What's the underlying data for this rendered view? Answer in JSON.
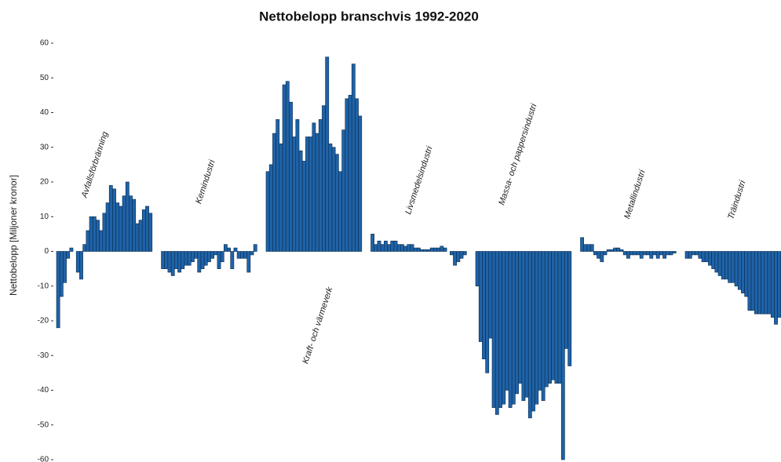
{
  "chart_data": {
    "type": "bar",
    "title": "Nettobelopp branschvis 1992-2020",
    "y_label": "Nettobelopp [Miljoner kronor]",
    "ylim": [
      -60,
      60
    ],
    "yticks": [
      -60,
      -50,
      -40,
      -30,
      -20,
      -10,
      0,
      10,
      20,
      30,
      40,
      50,
      60
    ],
    "series": [
      {
        "name": "Avfallsförbränning",
        "color": "#1f63a8",
        "values": [
          -22,
          -13,
          -9,
          -2,
          1,
          0,
          -6,
          -8,
          2,
          6,
          10,
          10,
          9,
          6,
          11,
          14,
          19,
          18,
          14,
          13,
          16,
          20,
          16,
          15,
          8,
          9,
          12,
          13,
          11
        ]
      },
      {
        "name": "Kemindustri",
        "color": "#1f63a8",
        "values": [
          -5,
          -5,
          -6,
          -7,
          -5,
          -6,
          -5,
          -4,
          -4,
          -3,
          -2,
          -6,
          -5,
          -4,
          -3,
          -2,
          -1,
          -5,
          -3,
          2,
          1,
          -5,
          1,
          -2,
          -2,
          -2,
          -6,
          -1,
          2
        ]
      },
      {
        "name": "Kraft- och värmeverk",
        "color": "#1f63a8",
        "values": [
          23,
          25,
          34,
          38,
          31,
          48,
          49,
          43,
          33,
          38,
          29,
          26,
          33,
          33,
          37,
          34,
          38,
          42,
          56,
          31,
          30,
          28,
          23,
          35,
          44,
          45,
          54,
          44,
          39
        ]
      },
      {
        "name": "Livsmedelsindustri",
        "color": "#1f63a8",
        "values": [
          5,
          2,
          3,
          2,
          3,
          2,
          3,
          3,
          2,
          2,
          1.5,
          2,
          2,
          1,
          1,
          0.5,
          0.5,
          0.5,
          1,
          1,
          1,
          1.5,
          1,
          0,
          -1,
          -4,
          -3,
          -2,
          -1
        ]
      },
      {
        "name": "Massa- och pappersindustri",
        "color": "#1f63a8",
        "values": [
          -10,
          -26,
          -31,
          -35,
          -25,
          -45,
          -47,
          -45,
          -44,
          -40,
          -45,
          -44,
          -41,
          -38,
          -43,
          -42,
          -48,
          -46,
          -44,
          -40,
          -43,
          -39,
          -38,
          -37,
          -38,
          -38,
          -60,
          -28,
          -33
        ]
      },
      {
        "name": "Metallindustri",
        "color": "#1f63a8",
        "values": [
          4,
          2,
          2,
          2,
          -1,
          -2,
          -3,
          -1,
          0.5,
          0.5,
          1,
          1,
          0.5,
          -1,
          -2,
          -1,
          -1,
          -1,
          -2,
          -1,
          -1,
          -2,
          -1,
          -2,
          -1,
          -2,
          -1,
          -1,
          -0.5
        ]
      },
      {
        "name": "Träindustri",
        "color": "#1f63a8",
        "values": [
          -2,
          -2,
          -1,
          -1,
          -2,
          -3,
          -3,
          -4,
          -5,
          -6,
          -7,
          -8,
          -8,
          -9,
          -9,
          -10,
          -11,
          -12,
          -13,
          -17,
          -17,
          -18,
          -18,
          -18,
          -18,
          -18,
          -19,
          -21,
          -19
        ]
      }
    ]
  }
}
